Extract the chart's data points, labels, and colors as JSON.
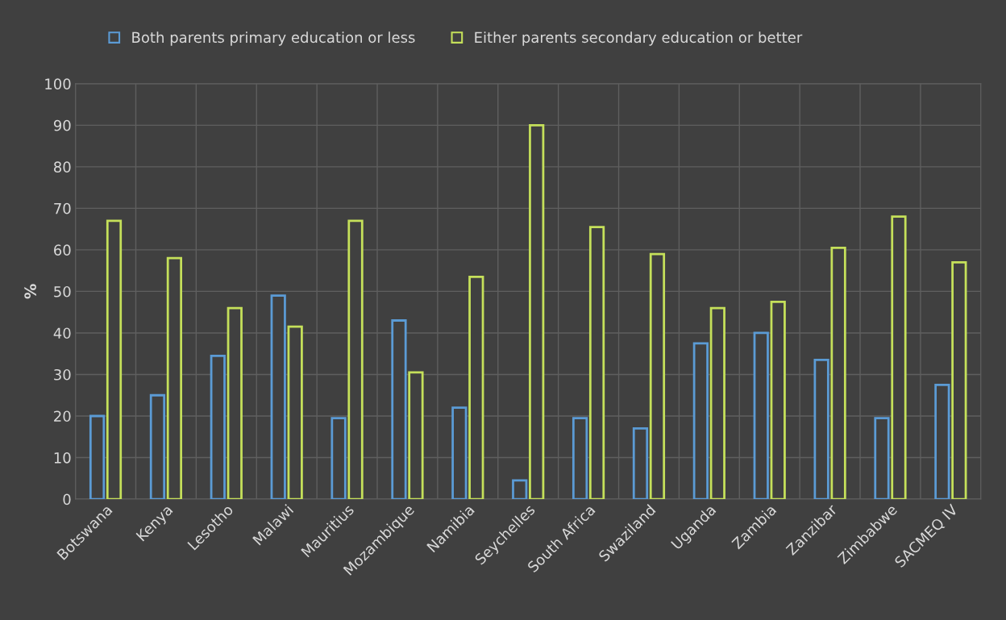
{
  "chart_data": {
    "type": "bar",
    "ylabel": "%",
    "categories": [
      "Botswana",
      "Kenya",
      "Lesotho",
      "Malawi",
      "Mauritius",
      "Mozambique",
      "Namibia",
      "Seychelles",
      "South Africa",
      "Swaziland",
      "Uganda",
      "Zambia",
      "Zanzibar",
      "Zimbabwe",
      "SACMEQ IV"
    ],
    "series": [
      {
        "name": "Both parents primary education or less",
        "color": "#5b9bd5",
        "values": [
          20,
          25,
          34.5,
          49,
          19.5,
          43,
          22,
          4.5,
          19.5,
          17,
          37.5,
          40,
          33.5,
          19.5,
          27.5
        ]
      },
      {
        "name": "Either parents secondary education or better",
        "color": "#c5e05a",
        "values": [
          67,
          58,
          46,
          41.5,
          67,
          30.5,
          53.5,
          90,
          65.5,
          59,
          46,
          47.5,
          60.5,
          68,
          57
        ]
      }
    ],
    "ylim": [
      0,
      100
    ],
    "yticks": [
      0,
      10,
      20,
      30,
      40,
      50,
      60,
      70,
      80,
      90,
      100
    ],
    "grid": true,
    "legend": "top"
  }
}
